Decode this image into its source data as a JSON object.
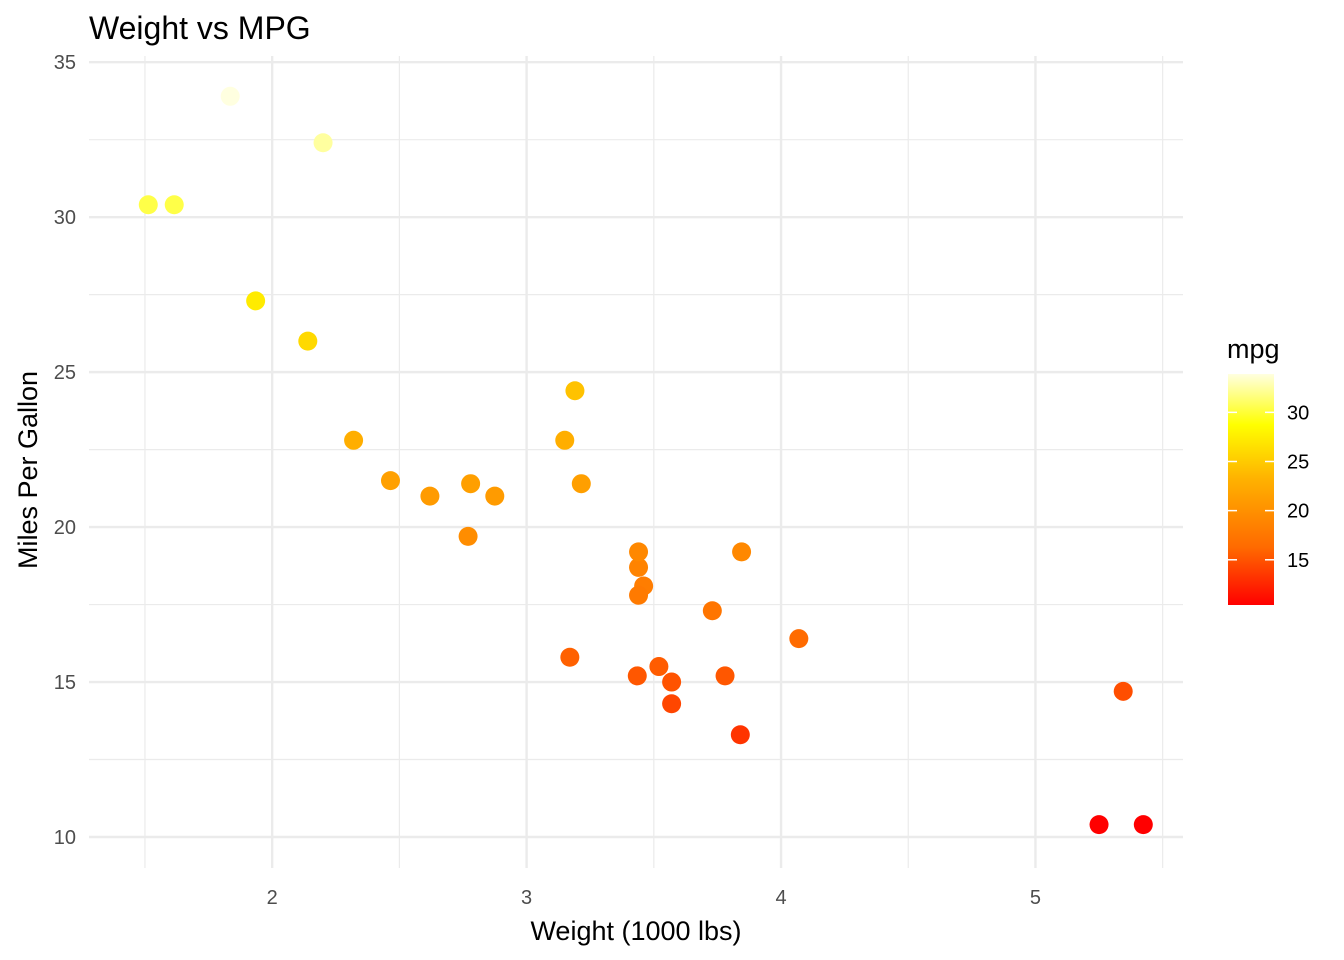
{
  "chart_data": {
    "type": "scatter",
    "title": "Weight vs MPG",
    "xlabel": "Weight (1000 lbs)",
    "ylabel": "Miles Per Gallon",
    "xlim": [
      1.28,
      5.58
    ],
    "ylim": [
      9.0,
      35.2
    ],
    "x_ticks": [
      2,
      3,
      4,
      5
    ],
    "y_ticks": [
      10,
      15,
      20,
      25,
      30,
      35
    ],
    "grid": true,
    "legend": {
      "title": "mpg",
      "type": "colorbar",
      "placement": "right",
      "ticks": [
        15,
        20,
        25,
        30
      ],
      "range": [
        10.4,
        33.9
      ],
      "colors": [
        "#FF0000",
        "#FF6A00",
        "#FFB300",
        "#FFFF00",
        "#FFFFE0"
      ]
    },
    "points": [
      {
        "x": 2.62,
        "y": 21.0
      },
      {
        "x": 2.875,
        "y": 21.0
      },
      {
        "x": 2.32,
        "y": 22.8
      },
      {
        "x": 3.215,
        "y": 21.4
      },
      {
        "x": 3.44,
        "y": 18.7
      },
      {
        "x": 3.46,
        "y": 18.1
      },
      {
        "x": 3.57,
        "y": 14.3
      },
      {
        "x": 3.19,
        "y": 24.4
      },
      {
        "x": 3.15,
        "y": 22.8
      },
      {
        "x": 3.44,
        "y": 19.2
      },
      {
        "x": 3.44,
        "y": 17.8
      },
      {
        "x": 4.07,
        "y": 16.4
      },
      {
        "x": 3.73,
        "y": 17.3
      },
      {
        "x": 3.78,
        "y": 15.2
      },
      {
        "x": 5.25,
        "y": 10.4
      },
      {
        "x": 5.424,
        "y": 10.4
      },
      {
        "x": 5.345,
        "y": 14.7
      },
      {
        "x": 2.2,
        "y": 32.4
      },
      {
        "x": 1.615,
        "y": 30.4
      },
      {
        "x": 1.835,
        "y": 33.9
      },
      {
        "x": 2.465,
        "y": 21.5
      },
      {
        "x": 3.52,
        "y": 15.5
      },
      {
        "x": 3.435,
        "y": 15.2
      },
      {
        "x": 3.84,
        "y": 13.3
      },
      {
        "x": 3.845,
        "y": 19.2
      },
      {
        "x": 1.935,
        "y": 27.3
      },
      {
        "x": 2.14,
        "y": 26.0
      },
      {
        "x": 1.513,
        "y": 30.4
      },
      {
        "x": 3.17,
        "y": 15.8
      },
      {
        "x": 2.77,
        "y": 19.7
      },
      {
        "x": 3.57,
        "y": 15.0
      },
      {
        "x": 2.78,
        "y": 21.4
      }
    ]
  }
}
